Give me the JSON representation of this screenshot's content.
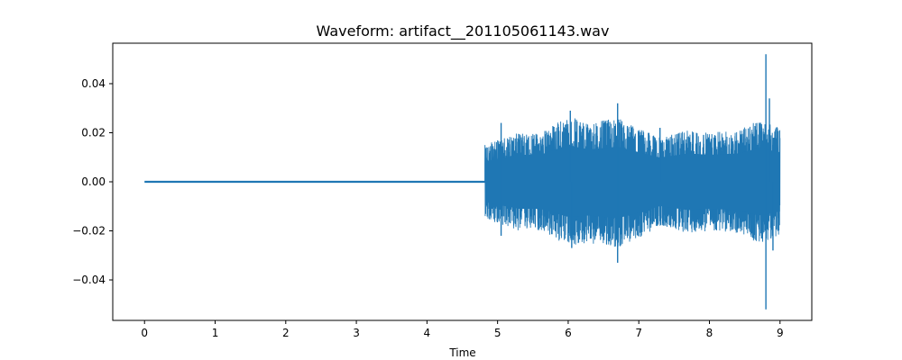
{
  "chart_data": {
    "type": "line",
    "title": "Waveform: artifact__201105061143.wav",
    "xlabel": "Time",
    "ylabel": "",
    "xlim": [
      -0.45,
      9.45
    ],
    "ylim": [
      -0.0565,
      0.0565
    ],
    "x_ticks": [
      0,
      1,
      2,
      3,
      4,
      5,
      6,
      7,
      8,
      9
    ],
    "x_tick_labels": [
      "0",
      "1",
      "2",
      "3",
      "4",
      "5",
      "6",
      "7",
      "8",
      "9"
    ],
    "y_ticks": [
      -0.04,
      -0.02,
      0.0,
      0.02,
      0.04
    ],
    "y_tick_labels": [
      "−0.04",
      "−0.02",
      "0.00",
      "0.02",
      "0.04"
    ],
    "grid": false,
    "legend": "none",
    "series": [
      {
        "color": "#1f77b4",
        "description_points": {
          "silent_segment": {
            "x_start": 0.0,
            "x_end": 4.82,
            "value": 0.0
          },
          "active_segment": {
            "x_start": 4.82,
            "x_end": 9.0
          },
          "envelope": [
            {
              "x": 4.82,
              "upper": 0.015,
              "lower": -0.015
            },
            {
              "x": 5.0,
              "upper": 0.017,
              "lower": -0.017
            },
            {
              "x": 5.3,
              "upper": 0.02,
              "lower": -0.02
            },
            {
              "x": 5.6,
              "upper": 0.02,
              "lower": -0.02
            },
            {
              "x": 6.0,
              "upper": 0.027,
              "lower": -0.026
            },
            {
              "x": 6.3,
              "upper": 0.024,
              "lower": -0.025
            },
            {
              "x": 6.7,
              "upper": 0.026,
              "lower": -0.027
            },
            {
              "x": 7.0,
              "upper": 0.022,
              "lower": -0.023
            },
            {
              "x": 7.3,
              "upper": 0.018,
              "lower": -0.018
            },
            {
              "x": 7.7,
              "upper": 0.021,
              "lower": -0.021
            },
            {
              "x": 8.0,
              "upper": 0.02,
              "lower": -0.02
            },
            {
              "x": 8.4,
              "upper": 0.021,
              "lower": -0.021
            },
            {
              "x": 8.7,
              "upper": 0.025,
              "lower": -0.025
            },
            {
              "x": 9.0,
              "upper": 0.022,
              "lower": -0.022
            }
          ],
          "peaks": [
            {
              "x": 5.05,
              "y": 0.024
            },
            {
              "x": 5.05,
              "y": -0.022
            },
            {
              "x": 6.03,
              "y": 0.029
            },
            {
              "x": 6.05,
              "y": -0.027
            },
            {
              "x": 6.7,
              "y": 0.032
            },
            {
              "x": 6.7,
              "y": -0.033
            },
            {
              "x": 7.3,
              "y": 0.022
            },
            {
              "x": 8.8,
              "y": 0.052
            },
            {
              "x": 8.8,
              "y": -0.052
            },
            {
              "x": 8.85,
              "y": 0.034
            },
            {
              "x": 8.9,
              "y": -0.028
            }
          ]
        }
      }
    ]
  }
}
